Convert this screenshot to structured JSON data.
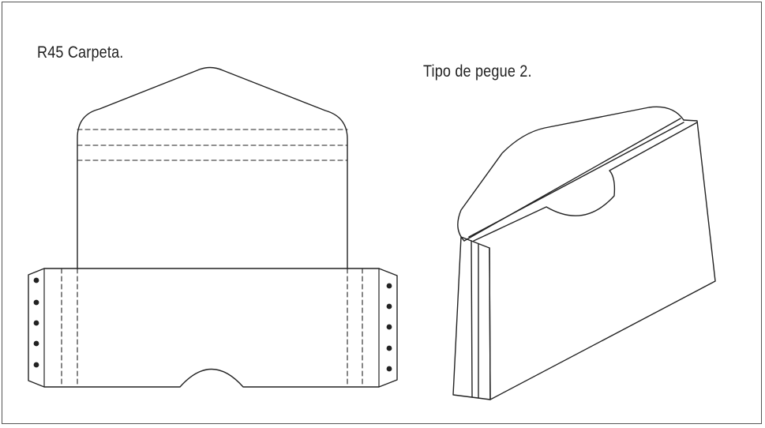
{
  "labels": {
    "left_title": "R45 Carpeta.",
    "right_title": "Tipo de pegue 2."
  },
  "colors": {
    "line": "#222222",
    "frame": "#555555",
    "background": "#ffffff"
  }
}
